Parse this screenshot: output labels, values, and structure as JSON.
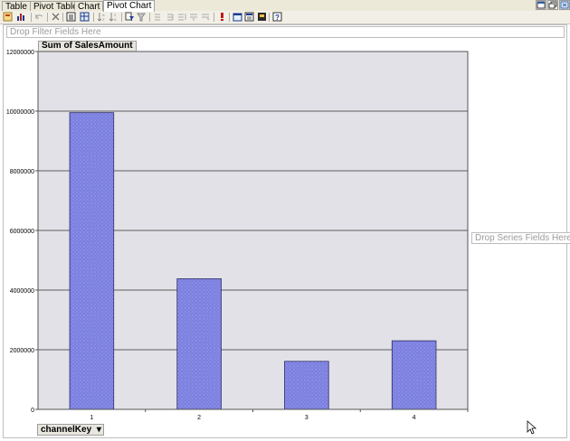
{
  "tabs": [
    {
      "label": "Table",
      "active": false
    },
    {
      "label": "Pivot Table",
      "active": false
    },
    {
      "label": "Chart",
      "active": false
    },
    {
      "label": "Pivot Chart",
      "active": true
    }
  ],
  "toolbar": {
    "icons": [
      "field-list-icon",
      "chart-type-icon",
      "undo-icon",
      "delete-icon",
      "properties-icon",
      "grid-icon",
      "sort-ascending-icon",
      "sort-descending-icon",
      "autofilter-icon",
      "show-top-icon",
      "move-left-icon",
      "move-right-icon",
      "move-up-icon",
      "move-down-icon",
      "exclamation-icon",
      "export-icon",
      "field-list-toggle-icon",
      "commands-icon",
      "help-icon"
    ]
  },
  "pivot": {
    "filter_placeholder": "Drop Filter Fields Here",
    "data_field": "Sum of SalesAmount",
    "series_placeholder": "Drop Series Fields Here",
    "category_field": "channelKey",
    "category_dropdown": "▾"
  },
  "colors": {
    "bar_fill": "#7b7fe0",
    "bar_stroke": "#2c2c66",
    "plot_bg": "#e2e1e7",
    "grid": "#303030"
  },
  "chart_data": {
    "type": "bar",
    "categories": [
      "1",
      "2",
      "3",
      "4"
    ],
    "values": [
      9950000,
      4380000,
      1610000,
      2300000
    ],
    "ylim": [
      0,
      12000000
    ],
    "yticks": [
      "0",
      "2000000",
      "4000000",
      "6000000",
      "8000000",
      "10000000",
      "12000000"
    ],
    "grid": true,
    "legend": "none"
  }
}
